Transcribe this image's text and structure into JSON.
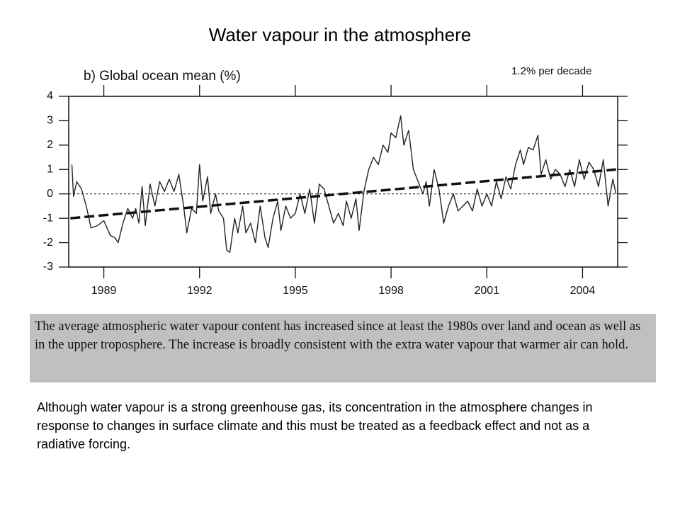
{
  "slide": {
    "title": "Water vapour in the atmosphere",
    "box_text": "The average atmospheric water vapour content has increased since at least the 1980s over land and ocean as well as in the upper troposphere. The increase is broadly consistent with the extra water vapour that warmer air can hold.",
    "paragraph": "Although water vapour is a strong greenhouse gas, its concentration in the atmosphere changes in response to changes in surface climate and this must be treated as a feedback effect and not as a radiative forcing."
  },
  "chart_data": {
    "type": "line",
    "title": "b) Global ocean mean (%)",
    "annotation": "1.2% per decade",
    "xlim": [
      1987.9,
      2005.1
    ],
    "xticks": [
      1989,
      1992,
      1995,
      1998,
      2001,
      2004
    ],
    "ylim": [
      -3,
      4
    ],
    "yticks": [
      -3,
      -2,
      -1,
      0,
      1,
      2,
      3,
      4
    ],
    "hline": 0,
    "series": [
      {
        "color": "#222222",
        "style": "solid",
        "x": [
          1988.0,
          1988.05,
          1988.15,
          1988.3,
          1988.45,
          1988.6,
          1988.8,
          1989.0,
          1989.2,
          1989.35,
          1989.45,
          1989.6,
          1989.75,
          1989.9,
          1990.0,
          1990.1,
          1990.2,
          1990.3,
          1990.45,
          1990.6,
          1990.75,
          1990.9,
          1991.05,
          1991.2,
          1991.35,
          1991.5,
          1991.6,
          1991.75,
          1991.9,
          1992.0,
          1992.1,
          1992.25,
          1992.35,
          1992.5,
          1992.6,
          1992.75,
          1992.85,
          1992.95,
          1993.1,
          1993.2,
          1993.35,
          1993.45,
          1993.6,
          1993.75,
          1993.9,
          1994.05,
          1994.15,
          1994.3,
          1994.45,
          1994.55,
          1994.7,
          1994.85,
          1995.0,
          1995.15,
          1995.3,
          1995.45,
          1995.6,
          1995.75,
          1995.9,
          1996.05,
          1996.2,
          1996.35,
          1996.5,
          1996.6,
          1996.75,
          1996.9,
          1997.0,
          1997.15,
          1997.3,
          1997.45,
          1997.6,
          1997.75,
          1997.9,
          1998.0,
          1998.15,
          1998.3,
          1998.4,
          1998.55,
          1998.7,
          1998.85,
          1999.0,
          1999.1,
          1999.2,
          1999.35,
          1999.5,
          1999.65,
          1999.8,
          1999.95,
          2000.1,
          2000.25,
          2000.4,
          2000.55,
          2000.7,
          2000.85,
          2001.0,
          2001.15,
          2001.3,
          2001.45,
          2001.6,
          2001.75,
          2001.9,
          2002.05,
          2002.15,
          2002.3,
          2002.45,
          2002.6,
          2002.7,
          2002.85,
          2003.0,
          2003.15,
          2003.3,
          2003.45,
          2003.6,
          2003.75,
          2003.9,
          2004.05,
          2004.2,
          2004.35,
          2004.5,
          2004.65,
          2004.8,
          2004.95,
          2005.05
        ],
        "values": [
          1.2,
          -0.1,
          0.5,
          0.2,
          -0.5,
          -1.4,
          -1.3,
          -1.1,
          -1.7,
          -1.8,
          -2.0,
          -1.2,
          -0.6,
          -1.0,
          -0.6,
          -1.2,
          0.3,
          -1.3,
          0.4,
          -0.5,
          0.5,
          0.1,
          0.6,
          0.1,
          0.8,
          -0.5,
          -1.6,
          -0.6,
          -0.8,
          1.2,
          -0.3,
          0.7,
          -0.8,
          0.0,
          -0.7,
          -1.0,
          -2.3,
          -2.4,
          -1.0,
          -1.6,
          -0.5,
          -1.6,
          -1.2,
          -2.0,
          -0.5,
          -1.8,
          -2.2,
          -1.0,
          -0.3,
          -1.5,
          -0.5,
          -1.0,
          -0.8,
          0.0,
          -0.8,
          0.2,
          -1.2,
          0.4,
          0.2,
          -0.5,
          -1.2,
          -0.8,
          -1.3,
          -0.3,
          -1.0,
          -0.2,
          -1.5,
          0.1,
          1.0,
          1.5,
          1.2,
          2.0,
          1.7,
          2.5,
          2.3,
          3.2,
          2.0,
          2.6,
          1.0,
          0.5,
          0.0,
          0.5,
          -0.5,
          1.0,
          0.2,
          -1.2,
          -0.5,
          0.0,
          -0.7,
          -0.5,
          -0.3,
          -0.7,
          0.2,
          -0.5,
          0.0,
          -0.5,
          0.5,
          -0.2,
          0.7,
          0.2,
          1.2,
          1.8,
          1.2,
          1.9,
          1.8,
          2.4,
          0.8,
          1.4,
          0.6,
          1.0,
          0.8,
          0.3,
          1.0,
          0.3,
          1.4,
          0.6,
          1.3,
          1.0,
          0.3,
          1.4,
          -0.5,
          0.6,
          0.0
        ]
      },
      {
        "color": "#111111",
        "style": "dashed",
        "x": [
          1987.95,
          2005.05
        ],
        "values": [
          -1,
          1
        ]
      }
    ]
  }
}
